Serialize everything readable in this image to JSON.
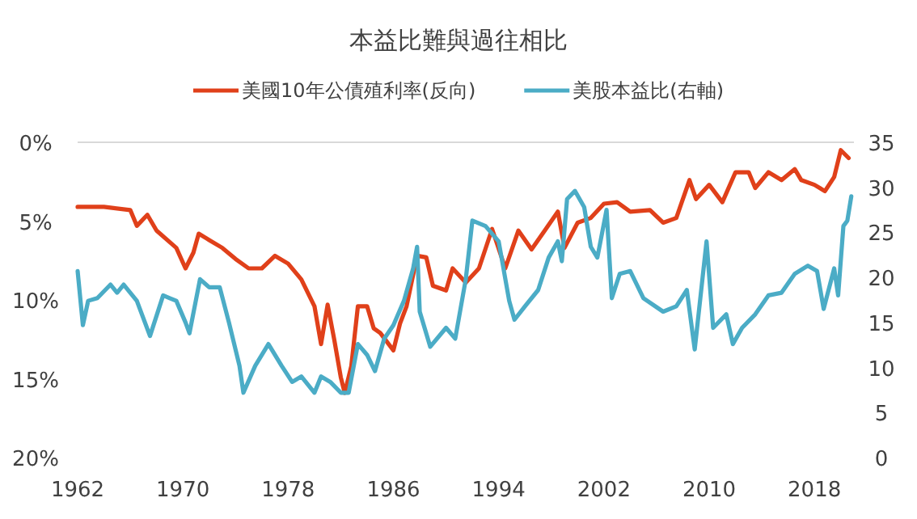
{
  "chart_data": {
    "type": "line",
    "title": "本益比難與過往相比",
    "legend": "top",
    "xlim": [
      1962,
      2021
    ],
    "xticks": [
      1962,
      1970,
      1978,
      1986,
      1994,
      2002,
      2010,
      2018
    ],
    "ylim": [
      20,
      0
    ],
    "yticks": [
      {
        "value": 0,
        "label": "0%"
      },
      {
        "value": 5,
        "label": "5%"
      },
      {
        "value": 10,
        "label": "10%"
      },
      {
        "value": 15,
        "label": "15%"
      },
      {
        "value": 20,
        "label": "20%"
      }
    ],
    "y2lim": [
      0,
      35
    ],
    "y2ticks": [
      0,
      5,
      10,
      15,
      20,
      25,
      30,
      35
    ],
    "series": [
      {
        "name": "美國10年公債殖利率(反向)",
        "color": "#e0401a",
        "x": [
          1962,
          1964,
          1966,
          1966.5,
          1967.3,
          1968,
          1969.5,
          1970.2,
          1970.8,
          1971.2,
          1972,
          1973,
          1974,
          1975,
          1976,
          1977,
          1978,
          1979,
          1980,
          1980.5,
          1981,
          1981.5,
          1982,
          1982.3,
          1982.8,
          1983.3,
          1984,
          1984.5,
          1985,
          1986,
          1986.5,
          1987,
          1987.8,
          1988.5,
          1989,
          1990,
          1990.5,
          1991.5,
          1992.5,
          1993.5,
          1994.5,
          1995.5,
          1996.5,
          1997.5,
          1998.5,
          1999,
          2000,
          2001,
          2002,
          2003,
          2004,
          2005.5,
          2006.5,
          2007.5,
          2008.5,
          2009,
          2010,
          2011,
          2012,
          2013,
          2013.5,
          2014.5,
          2015.5,
          2016.5,
          2017,
          2018,
          2018.8,
          2019.5,
          2020,
          2020.6
        ],
        "values": [
          4.1,
          4.1,
          4.3,
          5.3,
          4.6,
          5.6,
          6.7,
          8.0,
          7.0,
          5.8,
          6.2,
          6.7,
          7.4,
          8.0,
          8.0,
          7.2,
          7.7,
          8.7,
          10.4,
          12.8,
          10.3,
          12.5,
          14.9,
          15.9,
          14.2,
          10.4,
          10.4,
          11.8,
          12.1,
          13.2,
          11.5,
          10.4,
          7.2,
          7.3,
          9.1,
          9.4,
          8.0,
          8.9,
          8.0,
          5.5,
          8.0,
          5.6,
          6.8,
          5.6,
          4.4,
          6.7,
          5.1,
          4.8,
          3.9,
          3.8,
          4.4,
          4.3,
          5.1,
          4.8,
          2.4,
          3.6,
          2.7,
          3.8,
          1.9,
          1.9,
          2.9,
          1.9,
          2.4,
          1.7,
          2.4,
          2.7,
          3.1,
          2.2,
          0.5,
          1.0
        ]
      },
      {
        "name": "美股本益比(右軸)",
        "color": "#4bacc6",
        "axis": "y2",
        "x": [
          1962,
          1962.4,
          1962.8,
          1963.5,
          1964.5,
          1965,
          1965.5,
          1966.5,
          1967.5,
          1968.5,
          1969,
          1969.5,
          1970.2,
          1970.5,
          1971.3,
          1972,
          1972.8,
          1973.5,
          1974.3,
          1974.6,
          1975.5,
          1976.5,
          1977.5,
          1978.3,
          1979,
          1980,
          1980.5,
          1981.2,
          1982,
          1982.6,
          1983.3,
          1984,
          1984.6,
          1985.3,
          1986,
          1986.8,
          1987.5,
          1987.8,
          1988,
          1988.8,
          1990,
          1990.7,
          1991.5,
          1992,
          1993,
          1994,
          1994.8,
          1995.2,
          1996,
          1997,
          1997.8,
          1998.5,
          1998.8,
          1999.2,
          1999.8,
          2000.5,
          2001,
          2001.5,
          2002.2,
          2002.6,
          2003.2,
          2004,
          2005,
          2006.5,
          2007.5,
          2008.3,
          2008.9,
          2009.8,
          2010.3,
          2011.3,
          2011.8,
          2012.5,
          2013.5,
          2014.5,
          2015.5,
          2016.5,
          2017.5,
          2018.2,
          2018.7,
          2019.5,
          2019.8,
          2020.2,
          2020.5,
          2020.8
        ],
        "values": [
          20.7,
          14.7,
          17.4,
          17.7,
          19.2,
          18.3,
          19.2,
          17.4,
          13.5,
          18.0,
          17.7,
          17.4,
          15.0,
          13.8,
          19.8,
          18.9,
          18.9,
          15.0,
          10.2,
          7.2,
          10.2,
          12.6,
          10.2,
          8.4,
          9.0,
          7.2,
          9.0,
          8.4,
          7.2,
          7.2,
          12.6,
          11.4,
          9.6,
          13.2,
          14.7,
          17.4,
          21.0,
          23.4,
          16.2,
          12.3,
          14.4,
          13.2,
          19.8,
          26.3,
          25.7,
          24.0,
          17.4,
          15.3,
          16.8,
          18.6,
          22.2,
          24.0,
          21.8,
          28.7,
          29.6,
          27.8,
          23.4,
          22.2,
          27.5,
          17.7,
          20.4,
          20.7,
          17.7,
          16.2,
          16.8,
          18.6,
          12.0,
          24.0,
          14.4,
          15.9,
          12.6,
          14.4,
          15.9,
          18.0,
          18.3,
          20.4,
          21.3,
          20.7,
          16.5,
          21.0,
          18.0,
          25.7,
          26.3,
          29.0
        ]
      }
    ]
  }
}
